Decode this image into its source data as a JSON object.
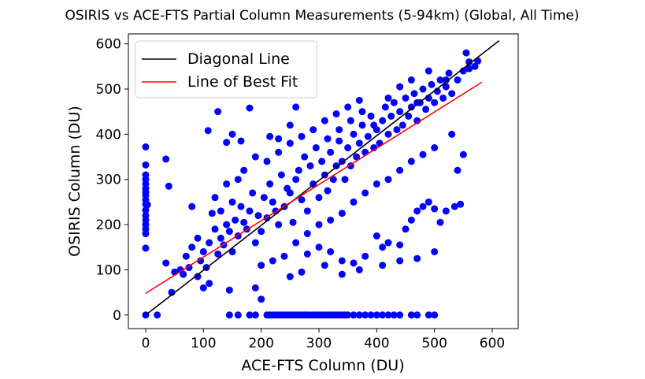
{
  "chart_data": {
    "type": "scatter",
    "title": "OSIRIS vs ACE-FTS Partial Column Measurements (5-94km) (Global, All Time)",
    "xlabel": "ACE-FTS Column (DU)",
    "ylabel": "OSIRIS Column (DU)",
    "xlim": [
      -30,
      645
    ],
    "ylim": [
      -30,
      622
    ],
    "xticks": [
      0,
      100,
      200,
      300,
      400,
      500,
      600
    ],
    "yticks": [
      0,
      100,
      200,
      300,
      400,
      500,
      600
    ],
    "grid": false,
    "legend_position": "top-left",
    "legend": [
      {
        "label": "Diagonal Line",
        "color": "#000000"
      },
      {
        "label": "Line of Best Fit",
        "color": "#ff0000"
      }
    ],
    "series": [
      {
        "kind": "scatter",
        "color": "#0000ff",
        "points": [
          [
            0,
            0
          ],
          [
            0,
            148
          ],
          [
            0,
            180
          ],
          [
            0,
            190
          ],
          [
            0,
            200
          ],
          [
            0,
            210
          ],
          [
            0,
            220
          ],
          [
            0,
            232
          ],
          [
            0,
            245
          ],
          [
            0,
            255
          ],
          [
            0,
            265
          ],
          [
            0,
            272
          ],
          [
            0,
            280
          ],
          [
            0,
            290
          ],
          [
            0,
            300
          ],
          [
            0,
            310
          ],
          [
            0,
            332
          ],
          [
            0,
            372
          ],
          [
            3,
            244
          ],
          [
            145,
            0
          ],
          [
            160,
            0
          ],
          [
            180,
            0
          ],
          [
            190,
            0
          ],
          [
            210,
            0
          ],
          [
            215,
            0
          ],
          [
            220,
            0
          ],
          [
            225,
            0
          ],
          [
            230,
            0
          ],
          [
            235,
            0
          ],
          [
            240,
            0
          ],
          [
            245,
            0
          ],
          [
            250,
            0
          ],
          [
            255,
            0
          ],
          [
            260,
            0
          ],
          [
            265,
            0
          ],
          [
            270,
            0
          ],
          [
            275,
            0
          ],
          [
            280,
            0
          ],
          [
            285,
            0
          ],
          [
            290,
            0
          ],
          [
            295,
            0
          ],
          [
            300,
            0
          ],
          [
            305,
            0
          ],
          [
            310,
            0
          ],
          [
            315,
            0
          ],
          [
            320,
            0
          ],
          [
            325,
            0
          ],
          [
            330,
            0
          ],
          [
            335,
            0
          ],
          [
            340,
            0
          ],
          [
            345,
            0
          ],
          [
            350,
            0
          ],
          [
            360,
            0
          ],
          [
            370,
            0
          ],
          [
            380,
            0
          ],
          [
            390,
            0
          ],
          [
            400,
            0
          ],
          [
            410,
            0
          ],
          [
            420,
            0
          ],
          [
            430,
            0
          ],
          [
            440,
            0
          ],
          [
            460,
            0
          ],
          [
            470,
            0
          ],
          [
            490,
            0
          ],
          [
            500,
            0
          ],
          [
            20,
            0
          ],
          [
            35,
            115
          ],
          [
            40,
            285
          ],
          [
            35,
            345
          ],
          [
            45,
            50
          ],
          [
            50,
            95
          ],
          [
            60,
            100
          ],
          [
            65,
            90
          ],
          [
            75,
            105
          ],
          [
            80,
            240
          ],
          [
            90,
            85
          ],
          [
            100,
            60
          ],
          [
            108,
            408
          ],
          [
            110,
            70
          ],
          [
            115,
            225
          ],
          [
            125,
            450
          ],
          [
            140,
            382
          ],
          [
            145,
            55
          ],
          [
            150,
            400
          ],
          [
            165,
            385
          ],
          [
            180,
            458
          ],
          [
            190,
            60
          ],
          [
            200,
            35
          ],
          [
            215,
            395
          ],
          [
            230,
            390
          ],
          [
            250,
            420
          ],
          [
            260,
            460
          ],
          [
            280,
            135
          ],
          [
            300,
            150
          ],
          [
            320,
            140
          ],
          [
            340,
            120
          ],
          [
            360,
            115
          ],
          [
            380,
            130
          ],
          [
            400,
            175
          ],
          [
            410,
            150
          ],
          [
            420,
            160
          ],
          [
            440,
            155
          ],
          [
            450,
            190
          ],
          [
            460,
            210
          ],
          [
            470,
            230
          ],
          [
            480,
            240
          ],
          [
            490,
            250
          ],
          [
            500,
            235
          ],
          [
            510,
            205
          ],
          [
            520,
            230
          ],
          [
            535,
            240
          ],
          [
            545,
            245
          ],
          [
            540,
            320
          ],
          [
            550,
            355
          ],
          [
            530,
            400
          ],
          [
            555,
            580
          ],
          [
            560,
            560
          ],
          [
            570,
            550
          ],
          [
            575,
            562
          ],
          [
            520,
            520
          ],
          [
            490,
            540
          ],
          [
            470,
            470
          ],
          [
            460,
            520
          ],
          [
            440,
            505
          ],
          [
            420,
            480
          ],
          [
            395,
            420
          ],
          [
            150,
            140
          ],
          [
            160,
            175
          ],
          [
            170,
            205
          ],
          [
            180,
            230
          ],
          [
            190,
            160
          ],
          [
            200,
            185
          ],
          [
            210,
            215
          ],
          [
            220,
            250
          ],
          [
            230,
            200
          ],
          [
            240,
            240
          ],
          [
            250,
            270
          ],
          [
            255,
            205
          ],
          [
            260,
            300
          ],
          [
            270,
            255
          ],
          [
            280,
            230
          ],
          [
            285,
            330
          ],
          [
            290,
            290
          ],
          [
            300,
            260
          ],
          [
            305,
            340
          ],
          [
            310,
            310
          ],
          [
            315,
            275
          ],
          [
            320,
            360
          ],
          [
            325,
            300
          ],
          [
            330,
            330
          ],
          [
            335,
            385
          ],
          [
            340,
            340
          ],
          [
            345,
            300
          ],
          [
            350,
            370
          ],
          [
            355,
            330
          ],
          [
            360,
            400
          ],
          [
            365,
            350
          ],
          [
            370,
            380
          ],
          [
            375,
            420
          ],
          [
            380,
            360
          ],
          [
            385,
            395
          ],
          [
            390,
            440
          ],
          [
            395,
            370
          ],
          [
            400,
            410
          ],
          [
            405,
            380
          ],
          [
            410,
            430
          ],
          [
            415,
            460
          ],
          [
            420,
            400
          ],
          [
            425,
            440
          ],
          [
            430,
            470
          ],
          [
            435,
            410
          ],
          [
            440,
            450
          ],
          [
            445,
            420
          ],
          [
            450,
            480
          ],
          [
            455,
            440
          ],
          [
            460,
            460
          ],
          [
            465,
            490
          ],
          [
            470,
            430
          ],
          [
            475,
            470
          ],
          [
            480,
            500
          ],
          [
            485,
            455
          ],
          [
            490,
            480
          ],
          [
            495,
            510
          ],
          [
            500,
            470
          ],
          [
            505,
            495
          ],
          [
            510,
            520
          ],
          [
            515,
            480
          ],
          [
            520,
            505
          ],
          [
            525,
            535
          ],
          [
            530,
            490
          ],
          [
            540,
            520
          ],
          [
            550,
            540
          ],
          [
            560,
            545
          ],
          [
            70,
            130
          ],
          [
            80,
            150
          ],
          [
            90,
            170
          ],
          [
            100,
            140
          ],
          [
            110,
            160
          ],
          [
            120,
            190
          ],
          [
            130,
            170
          ],
          [
            140,
            200
          ],
          [
            95,
            120
          ],
          [
            105,
            105
          ],
          [
            125,
            135
          ],
          [
            135,
            155
          ],
          [
            145,
            185
          ],
          [
            155,
            210
          ],
          [
            165,
            240
          ],
          [
            175,
            190
          ],
          [
            185,
            270
          ],
          [
            195,
            220
          ],
          [
            205,
            260
          ],
          [
            215,
            290
          ],
          [
            225,
            230
          ],
          [
            235,
            310
          ],
          [
            245,
            280
          ],
          [
            265,
            320
          ],
          [
            275,
            350
          ],
          [
            295,
            370
          ],
          [
            315,
            390
          ],
          [
            335,
            410
          ],
          [
            355,
            430
          ],
          [
            375,
            450
          ],
          [
            200,
            110
          ],
          [
            220,
            120
          ],
          [
            240,
            130
          ],
          [
            260,
            160
          ],
          [
            280,
            180
          ],
          [
            300,
            200
          ],
          [
            320,
            210
          ],
          [
            340,
            225
          ],
          [
            360,
            250
          ],
          [
            380,
            270
          ],
          [
            400,
            290
          ],
          [
            420,
            300
          ],
          [
            440,
            320
          ],
          [
            460,
            340
          ],
          [
            480,
            355
          ],
          [
            500,
            370
          ],
          [
            250,
            85
          ],
          [
            270,
            95
          ],
          [
            310,
            110
          ],
          [
            340,
            90
          ],
          [
            370,
            100
          ],
          [
            410,
            110
          ],
          [
            440,
            120
          ],
          [
            470,
            125
          ],
          [
            500,
            140
          ],
          [
            210,
            340
          ],
          [
            230,
            360
          ],
          [
            250,
            380
          ],
          [
            270,
            395
          ],
          [
            290,
            410
          ],
          [
            310,
            430
          ],
          [
            330,
            445
          ],
          [
            350,
            460
          ],
          [
            370,
            475
          ],
          [
            170,
            320
          ],
          [
            190,
            350
          ],
          [
            120,
            260
          ],
          [
            140,
            290
          ],
          [
            160,
            300
          ],
          [
            130,
            230
          ],
          [
            150,
            250
          ]
        ]
      },
      {
        "kind": "line",
        "name": "Diagonal Line",
        "color": "#000000",
        "x": [
          0,
          612
        ],
        "y": [
          0,
          607
        ]
      },
      {
        "kind": "line",
        "name": "Line of Best Fit",
        "color": "#ff0000",
        "x": [
          0,
          582
        ],
        "y": [
          48,
          515
        ]
      }
    ]
  }
}
